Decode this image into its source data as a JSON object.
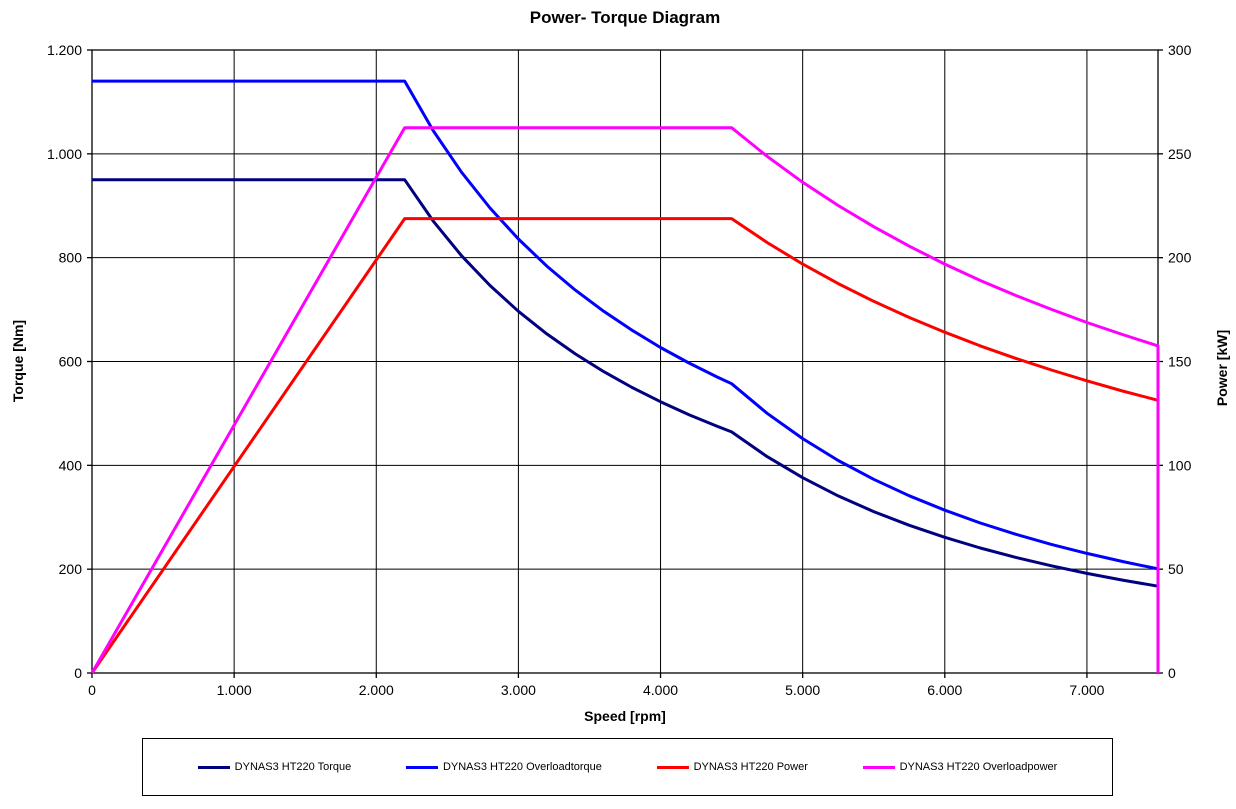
{
  "chart_data": {
    "type": "line",
    "title": "Power- Torque Diagram",
    "xlabel": "Speed [rpm]",
    "ylabel_left": "Torque [Nm]",
    "ylabel_right": "Power [kW]",
    "xlim": [
      0,
      7500
    ],
    "ylim_left": [
      0,
      1200
    ],
    "ylim_right": [
      0,
      300
    ],
    "grid": true,
    "legend_position": "bottom",
    "colors": {
      "background": "#ffffff",
      "grid": "#000000",
      "axis": "#000000",
      "torque": "#000080",
      "overloadtorque": "#0000ff",
      "power": "#ff0000",
      "overloadpower": "#ff00ff"
    },
    "x_ticks": {
      "values": [
        0,
        1000,
        2000,
        3000,
        4000,
        5000,
        6000,
        7000
      ],
      "labels": [
        "0",
        "1.000",
        "2.000",
        "3.000",
        "4.000",
        "5.000",
        "6.000",
        "7.000"
      ]
    },
    "y_ticks_left": {
      "values": [
        0,
        200,
        400,
        600,
        800,
        1000,
        1200
      ],
      "labels": [
        "0",
        "200",
        "400",
        "600",
        "800",
        "1.000",
        "1.200"
      ]
    },
    "y_ticks_right": {
      "values": [
        0,
        50,
        100,
        150,
        200,
        250,
        300
      ],
      "labels": [
        "0",
        "50",
        "100",
        "150",
        "200",
        "250",
        "300"
      ]
    },
    "series": [
      {
        "name": "DYNAS3 HT220 Torque",
        "id": "torque",
        "axis": "left",
        "color": "#000080",
        "points": [
          [
            0,
            950
          ],
          [
            2200,
            950
          ],
          [
            2400,
            870.8
          ],
          [
            2600,
            803.8
          ],
          [
            2800,
            746.4
          ],
          [
            3000,
            696.7
          ],
          [
            3200,
            653.1
          ],
          [
            3400,
            614.7
          ],
          [
            3600,
            580.6
          ],
          [
            3800,
            550.0
          ],
          [
            4000,
            522.5
          ],
          [
            4200,
            497.6
          ],
          [
            4400,
            475.0
          ],
          [
            4500,
            464.4
          ],
          [
            4750,
            416.8
          ],
          [
            5000,
            376.2
          ],
          [
            5250,
            341.2
          ],
          [
            5500,
            310.9
          ],
          [
            5750,
            284.5
          ],
          [
            6000,
            261.3
          ],
          [
            6250,
            240.8
          ],
          [
            6500,
            222.6
          ],
          [
            6750,
            206.4
          ],
          [
            7000,
            191.9
          ],
          [
            7250,
            178.9
          ],
          [
            7500,
            167.2
          ]
        ]
      },
      {
        "name": "DYNAS3 HT220 Overloadtorque",
        "id": "overloadtorque",
        "axis": "left",
        "color": "#0000ff",
        "points": [
          [
            0,
            1140
          ],
          [
            2200,
            1140
          ],
          [
            2400,
            1045.0
          ],
          [
            2600,
            964.6
          ],
          [
            2800,
            895.7
          ],
          [
            3000,
            836.0
          ],
          [
            3200,
            783.8
          ],
          [
            3400,
            737.6
          ],
          [
            3600,
            696.7
          ],
          [
            3800,
            660.0
          ],
          [
            4000,
            627.0
          ],
          [
            4200,
            597.1
          ],
          [
            4400,
            570.0
          ],
          [
            4500,
            557.3
          ],
          [
            4750,
            500.2
          ],
          [
            5000,
            451.4
          ],
          [
            5250,
            409.4
          ],
          [
            5500,
            373.1
          ],
          [
            5750,
            341.4
          ],
          [
            6000,
            313.5
          ],
          [
            6250,
            288.9
          ],
          [
            6500,
            267.1
          ],
          [
            6750,
            247.7
          ],
          [
            7000,
            230.3
          ],
          [
            7250,
            214.7
          ],
          [
            7500,
            200.6
          ]
        ]
      },
      {
        "name": "DYNAS3 HT220 Power",
        "id": "power",
        "axis": "right",
        "color": "#ff0000",
        "points": [
          [
            0,
            0
          ],
          [
            2200,
            218.8
          ],
          [
            4500,
            218.8
          ],
          [
            4750,
            207.3
          ],
          [
            5000,
            196.9
          ],
          [
            5250,
            187.5
          ],
          [
            5500,
            179.0
          ],
          [
            5750,
            171.2
          ],
          [
            6000,
            164.1
          ],
          [
            6250,
            157.5
          ],
          [
            6500,
            151.5
          ],
          [
            6750,
            145.9
          ],
          [
            7000,
            140.7
          ],
          [
            7250,
            135.8
          ],
          [
            7500,
            131.3
          ]
        ]
      },
      {
        "name": "DYNAS3 HT220 Overloadpower",
        "id": "overloadpower",
        "axis": "right",
        "color": "#ff00ff",
        "points": [
          [
            0,
            0
          ],
          [
            2200,
            262.6
          ],
          [
            4500,
            262.6
          ],
          [
            4750,
            248.8
          ],
          [
            5000,
            236.3
          ],
          [
            5250,
            225.1
          ],
          [
            5500,
            214.9
          ],
          [
            5750,
            205.5
          ],
          [
            6000,
            196.9
          ],
          [
            6250,
            189.0
          ],
          [
            6500,
            181.8
          ],
          [
            6750,
            175.1
          ],
          [
            7000,
            168.8
          ],
          [
            7250,
            163.0
          ],
          [
            7500,
            157.5
          ],
          [
            7500,
            0
          ]
        ]
      }
    ]
  }
}
